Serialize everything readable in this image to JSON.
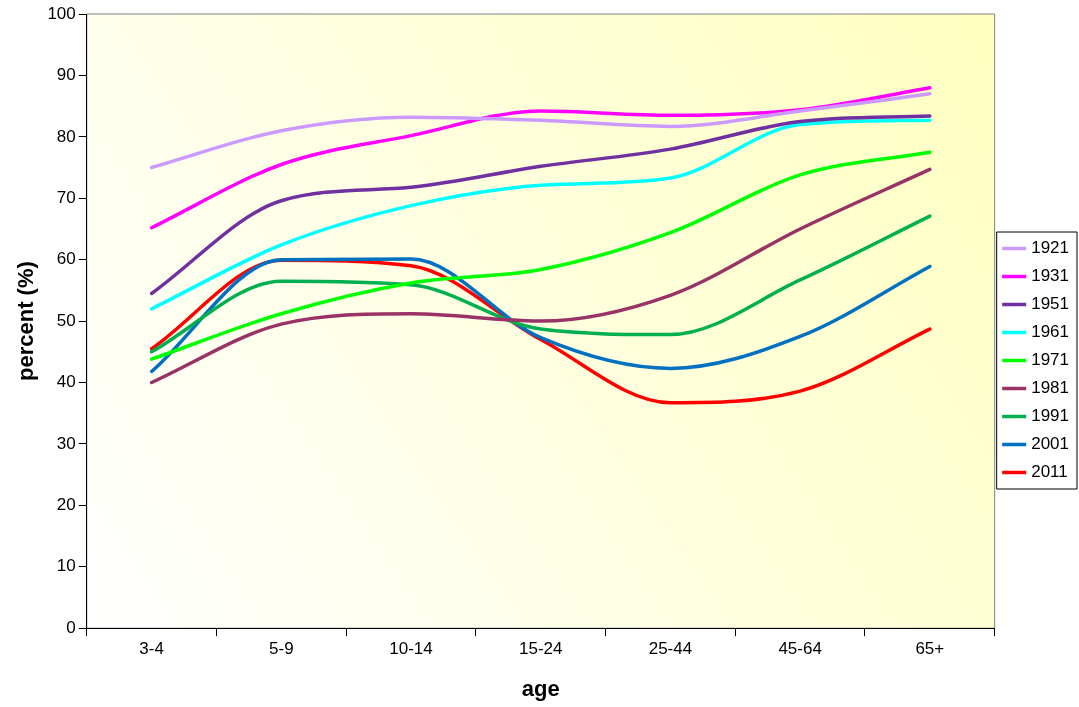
{
  "chart_data": {
    "type": "line",
    "xlabel": "age",
    "ylabel": "percent (%)",
    "categories": [
      "3-4",
      "5-9",
      "10-14",
      "15-24",
      "25-44",
      "45-64",
      "65+"
    ],
    "ylim": [
      0,
      100
    ],
    "yticks": [
      0,
      10,
      20,
      30,
      40,
      50,
      60,
      70,
      80,
      90,
      100
    ],
    "grid": false,
    "legend": "right",
    "marker": "none",
    "line_style": "solid",
    "series": [
      {
        "name": "1921",
        "color": "#cc99ff",
        "values": [
          75,
          81,
          83.2,
          82.7,
          81.7,
          84.2,
          87
        ]
      },
      {
        "name": "1931",
        "color": "#ff00ff",
        "values": [
          65.2,
          75.5,
          80.2,
          84.2,
          83.5,
          84.4,
          88
        ]
      },
      {
        "name": "1951",
        "color": "#7030a0",
        "values": [
          54.5,
          69.6,
          71.8,
          75.2,
          78,
          82.5,
          83.4
        ]
      },
      {
        "name": "1961",
        "color": "#00ffff",
        "values": [
          52,
          62.4,
          68.8,
          72.1,
          73.3,
          82,
          82.7
        ]
      },
      {
        "name": "1971",
        "color": "#00ff00",
        "values": [
          43.8,
          51.2,
          56.2,
          58.4,
          64.4,
          73.8,
          77.5
        ]
      },
      {
        "name": "1981",
        "color": "#993366",
        "values": [
          40,
          49.5,
          51.2,
          50,
          54.2,
          65,
          74.7
        ]
      },
      {
        "name": "1991",
        "color": "#00b050",
        "values": [
          45,
          56.5,
          55.9,
          48.7,
          47.8,
          56.7,
          67.1
        ]
      },
      {
        "name": "2001",
        "color": "#0070c0",
        "values": [
          41.8,
          60,
          60.1,
          47.3,
          42.3,
          47.5,
          58.9
        ]
      },
      {
        "name": "2011",
        "color": "#ff0000",
        "values": [
          45.5,
          59.9,
          59,
          47,
          36.7,
          38.6,
          48.7
        ]
      }
    ]
  }
}
